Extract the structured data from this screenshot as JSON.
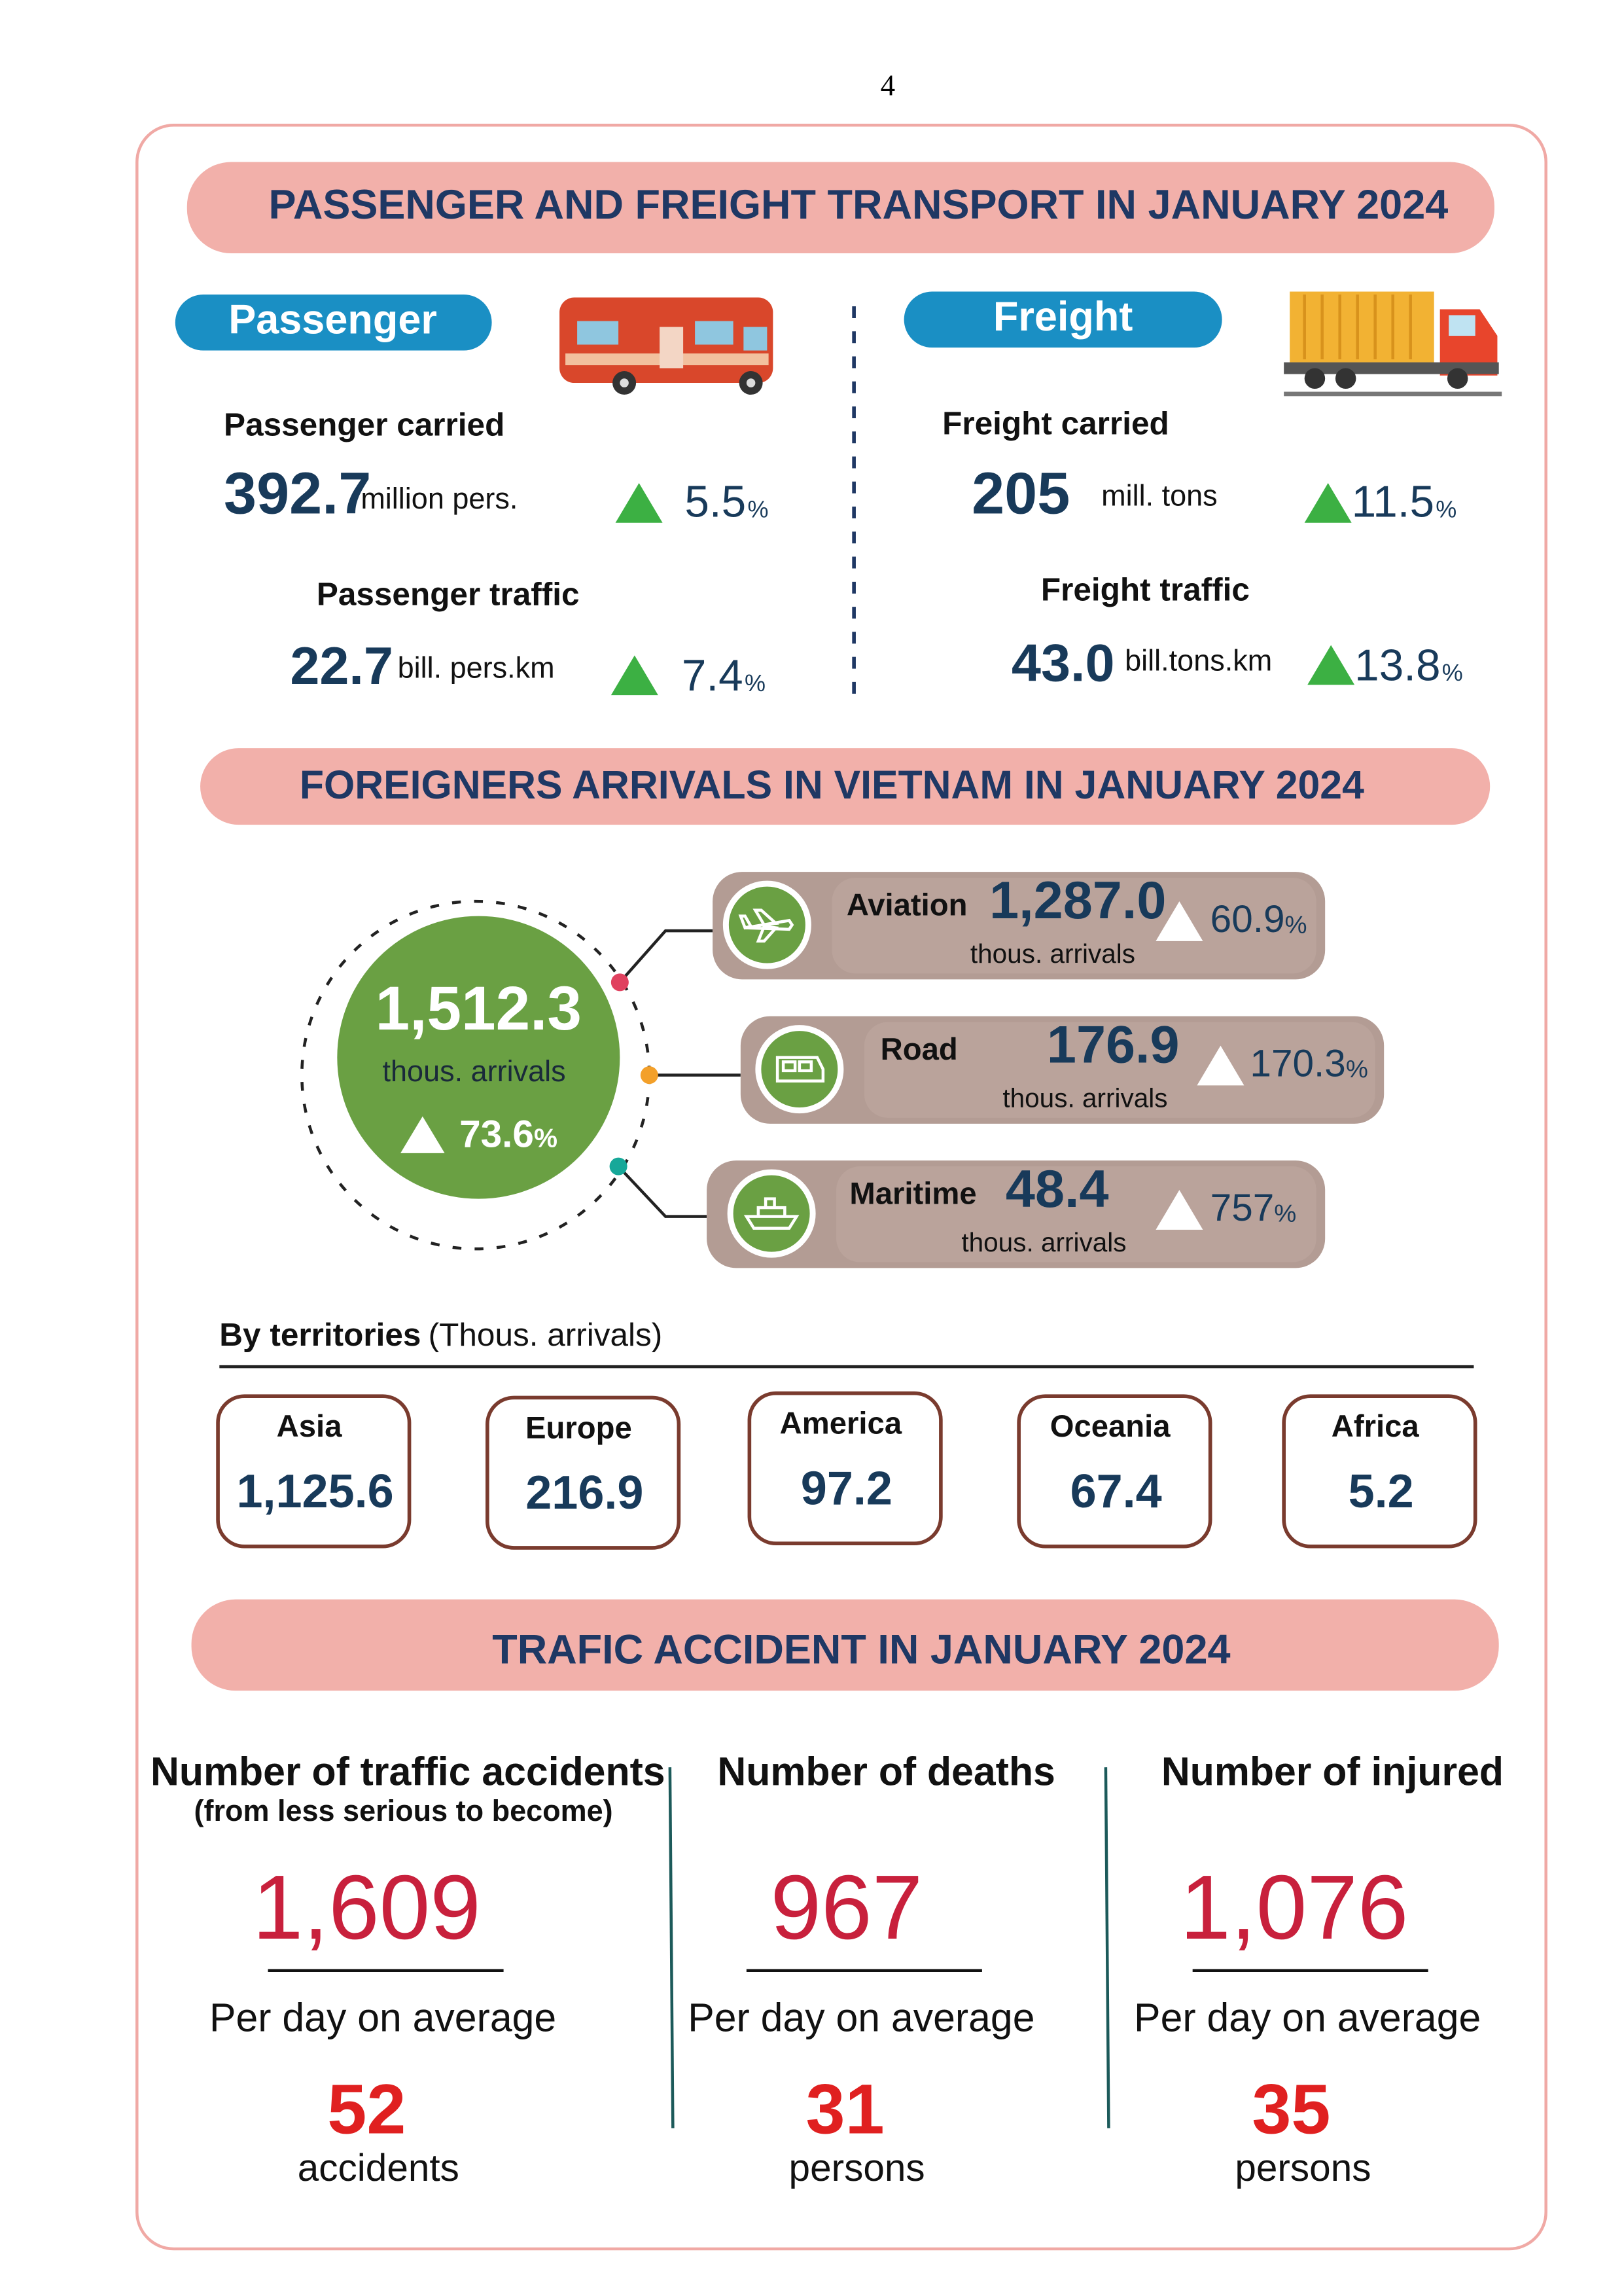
{
  "page_number": "4",
  "transport": {
    "title": "PASSENGER AND FREIGHT TRANSPORT IN JANUARY 2024",
    "passenger": {
      "label": "Passenger",
      "items": [
        {
          "label": "Passenger carried",
          "value": "392.7",
          "unit": "million pers.",
          "change": "5.5",
          "change_unit": "%"
        },
        {
          "label": "Passenger traffic",
          "value": "22.7",
          "unit": "bill. pers.km",
          "change": "7.4",
          "change_unit": "%"
        }
      ]
    },
    "freight": {
      "label": "Freight",
      "items": [
        {
          "label": "Freight carried",
          "value": "205",
          "unit": "mill. tons",
          "change": "11.5",
          "change_unit": "%"
        },
        {
          "label": "Freight traffic",
          "value": "43.0",
          "unit": "bill.tons.km",
          "change": "13.8",
          "change_unit": "%"
        }
      ]
    }
  },
  "arrivals": {
    "title": "FOREIGNERS ARRIVALS IN VIETNAM IN JANUARY 2024",
    "total": {
      "value": "1,512.3",
      "unit": "thous. arrivals",
      "change": "73.6",
      "change_unit": "%"
    },
    "modes": [
      {
        "label": "Aviation",
        "value": "1,287.0",
        "unit": "thous. arrivals",
        "change": "60.9",
        "change_unit": "%"
      },
      {
        "label": "Road",
        "value": "176.9",
        "unit": "thous. arrivals",
        "change": "170.3",
        "change_unit": "%"
      },
      {
        "label": "Maritime",
        "value": "48.4",
        "unit": "thous. arrivals",
        "change": "757",
        "change_unit": "%"
      }
    ],
    "territories": {
      "title": "By territories",
      "note": "(Thous. arrivals)",
      "items": [
        {
          "label": "Asia",
          "value": "1,125.6"
        },
        {
          "label": "Europe",
          "value": "216.9"
        },
        {
          "label": "America",
          "value": "97.2"
        },
        {
          "label": "Oceania",
          "value": "67.4"
        },
        {
          "label": "Africa",
          "value": "5.2"
        }
      ]
    }
  },
  "accidents": {
    "title": "TRAFIC ACCIDENT IN JANUARY 2024",
    "columns": [
      {
        "title": "Number of traffic accidents",
        "subtitle": "(from less serious to become)",
        "total": "1,609",
        "per_day_label": "Per day on average",
        "per_day": "52",
        "per_day_unit": "accidents"
      },
      {
        "title": "Number of deaths",
        "total": "967",
        "per_day_label": "Per day on average",
        "per_day": "31",
        "per_day_unit": "persons"
      },
      {
        "title": "Number of injured",
        "total": "1,076",
        "per_day_label": "Per day on average",
        "per_day": "35",
        "per_day_unit": "persons"
      }
    ]
  }
}
